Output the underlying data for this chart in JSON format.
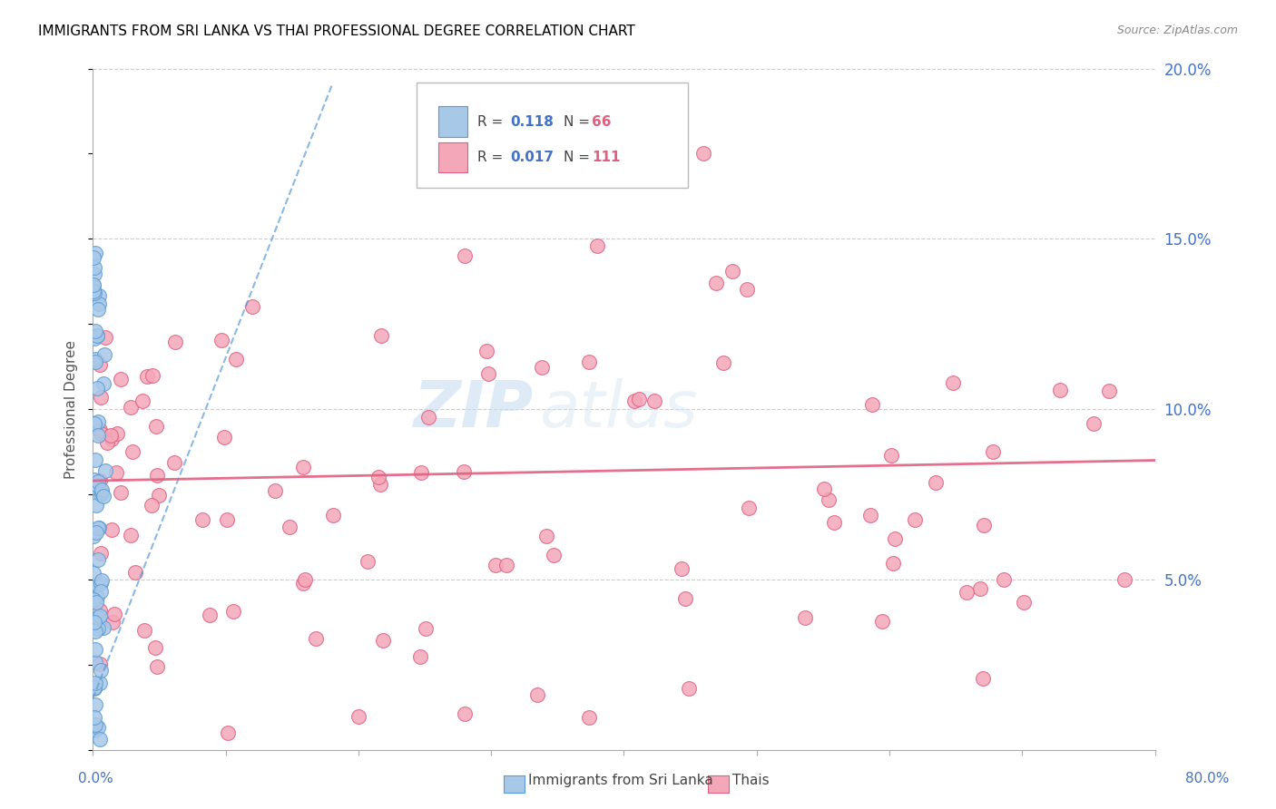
{
  "title": "IMMIGRANTS FROM SRI LANKA VS THAI PROFESSIONAL DEGREE CORRELATION CHART",
  "source": "Source: ZipAtlas.com",
  "ylabel": "Professional Degree",
  "xlim": [
    0,
    80
  ],
  "ylim": [
    0,
    20
  ],
  "sri_lanka_color": "#a8c8e8",
  "sri_lanka_edge": "#5b9bd5",
  "thai_color": "#f4a7b9",
  "thai_edge": "#e06080",
  "sri_lanka_R": 0.118,
  "sri_lanka_N": 66,
  "thai_R": 0.017,
  "thai_N": 111,
  "watermark_zip": "ZIP",
  "watermark_atlas": "atlas",
  "sl_trend_x0": 0.0,
  "sl_trend_y0": 1.5,
  "sl_trend_x1": 18.0,
  "sl_trend_y1": 19.5,
  "th_trend_x0": 0.0,
  "th_trend_y0": 7.9,
  "th_trend_x1": 80.0,
  "th_trend_y1": 8.5
}
